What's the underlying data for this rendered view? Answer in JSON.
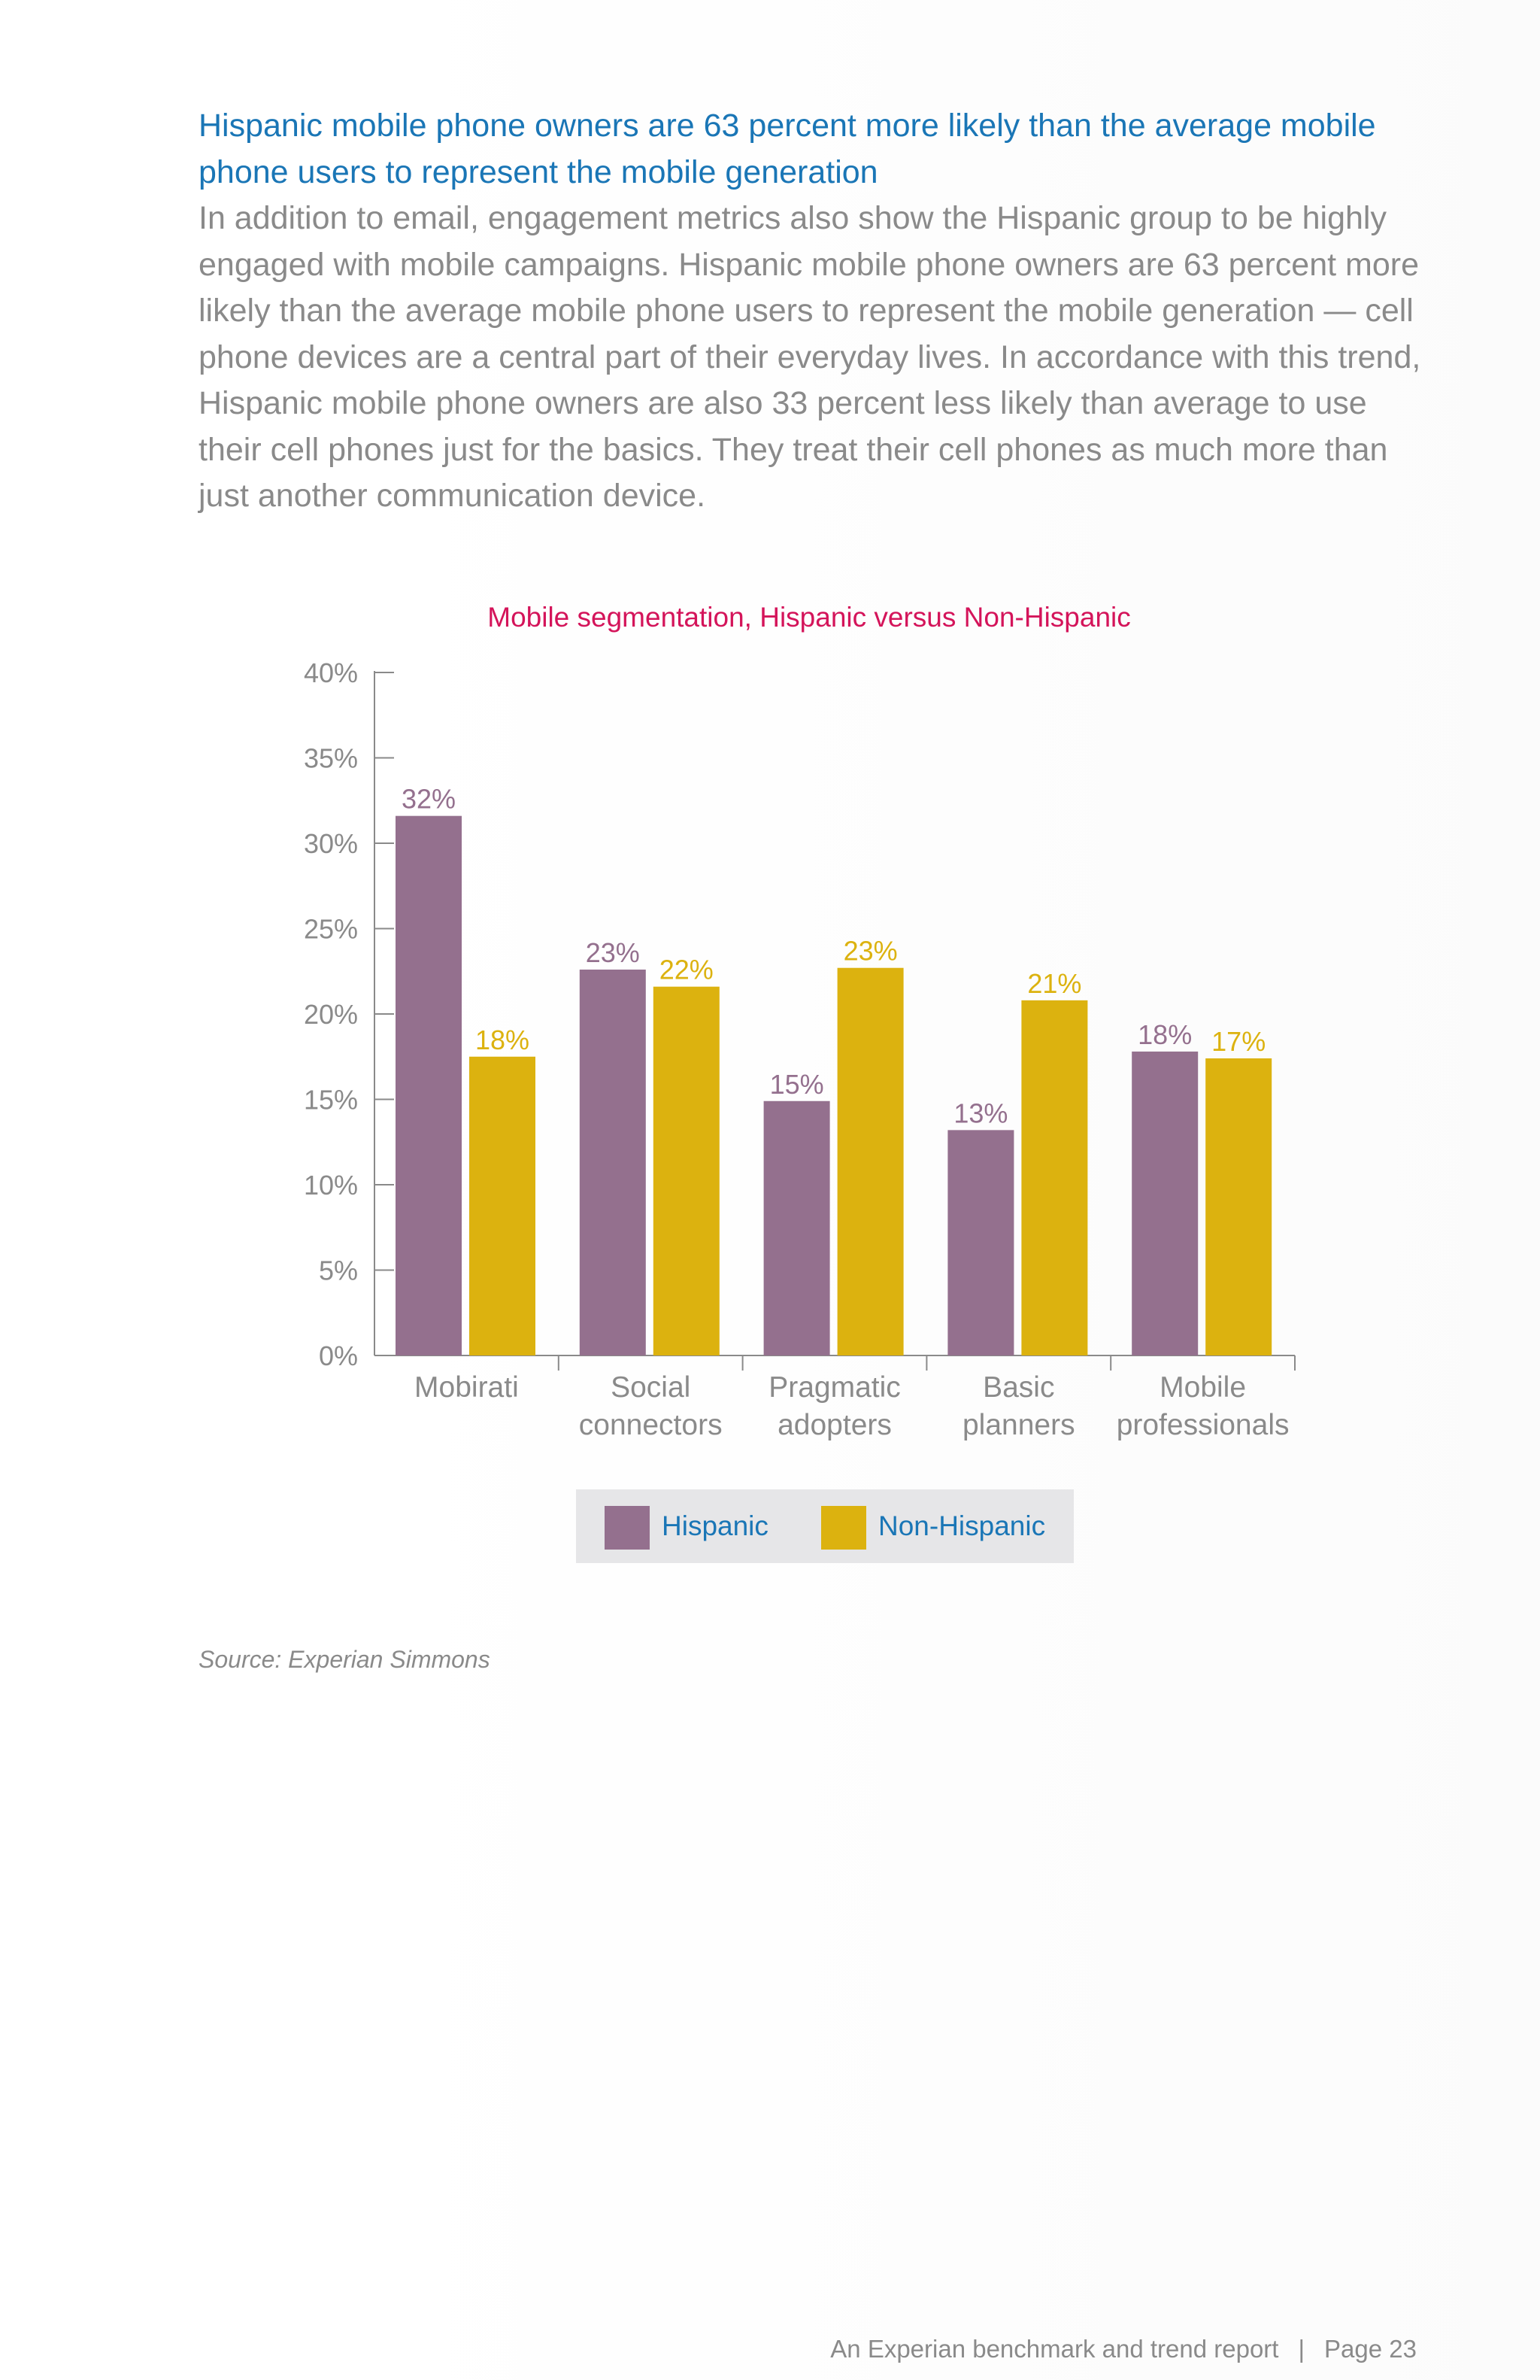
{
  "headline": "Hispanic mobile phone owners are 63 percent more likely than the average mobile phone users to represent the mobile generation",
  "body": "In addition to email, engagement metrics also show the Hispanic group to be highly engaged with mobile campaigns. Hispanic mobile phone owners are 63 percent more likely than the average mobile phone users to represent the mobile generation — cell phone devices are a central part of their everyday lives. In accordance with this trend, Hispanic mobile phone owners are also 33 percent less likely than average to use their cell phones just for the basics. They treat their cell phones as much more than just another communication device.",
  "source": "Source: Experian Simmons",
  "footer": {
    "report": "An Experian benchmark and trend report",
    "separator": "|",
    "page": "Page 23"
  },
  "colors": {
    "hispanic": "#94708e",
    "non_hispanic": "#dcb20f",
    "title": "#d4145a",
    "legend_text": "#1a76b6",
    "axis": "#8a8a8a"
  },
  "chart_data": {
    "type": "bar",
    "title": "Mobile segmentation, Hispanic versus Non-Hispanic",
    "categories": [
      [
        "Mobirati"
      ],
      [
        "Social",
        "connectors"
      ],
      [
        "Pragmatic",
        "adopters"
      ],
      [
        "Basic",
        "planners"
      ],
      [
        "Mobile",
        "professionals"
      ]
    ],
    "series": [
      {
        "name": "Hispanic",
        "values": [
          31.6,
          22.6,
          14.9,
          13.2,
          17.8
        ],
        "labels": [
          "32%",
          "23%",
          "15%",
          "13%",
          "18%"
        ]
      },
      {
        "name": "Non-Hispanic",
        "values": [
          17.5,
          21.6,
          22.7,
          20.8,
          17.4
        ],
        "labels": [
          "18%",
          "22%",
          "23%",
          "21%",
          "17%"
        ]
      }
    ],
    "yticks": [
      "0%",
      "5%",
      "10%",
      "15%",
      "20%",
      "25%",
      "30%",
      "35%",
      "40%"
    ],
    "ylim": [
      0,
      40
    ],
    "xlabel": "",
    "ylabel": "",
    "grid": false,
    "legend_position": "bottom"
  }
}
